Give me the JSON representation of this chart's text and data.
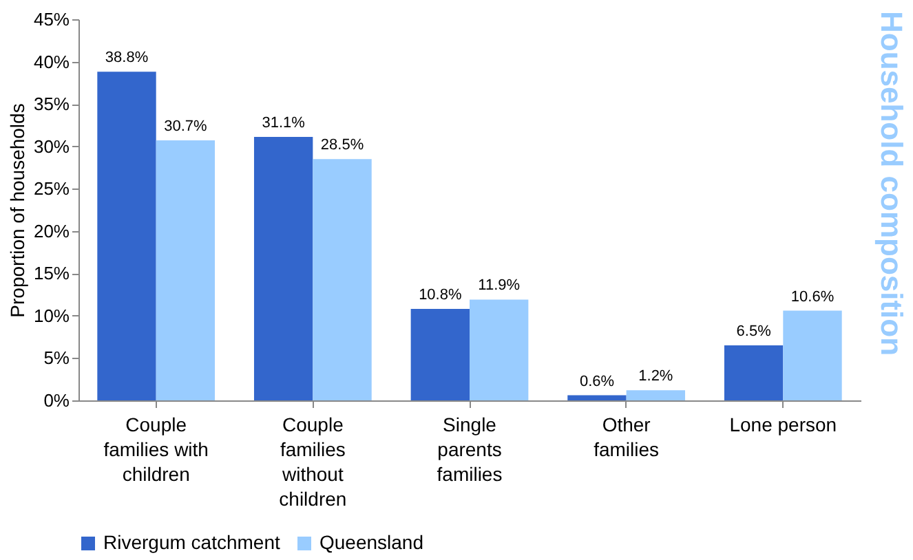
{
  "chart_data": {
    "type": "bar",
    "title": "Household composition",
    "ylabel": "Proportion of households",
    "categories": [
      "Couple families with children",
      "Couple families without children",
      "Single parents families",
      "Other families",
      "Lone person"
    ],
    "series": [
      {
        "name": "Rivergum catchment",
        "color": "#3366cc",
        "values": [
          38.8,
          31.1,
          10.8,
          0.6,
          6.5
        ],
        "value_labels": [
          "38.8%",
          "31.1%",
          "10.8%",
          "0.6%",
          "6.5%"
        ]
      },
      {
        "name": "Queensland",
        "color": "#99ccff",
        "values": [
          30.7,
          28.5,
          11.9,
          1.2,
          10.6
        ],
        "value_labels": [
          "30.7%",
          "28.5%",
          "11.9%",
          "1.2%",
          "10.6%"
        ]
      }
    ],
    "ylim": [
      0,
      45
    ],
    "yticks": [
      {
        "value": 0,
        "label": "0%"
      },
      {
        "value": 5,
        "label": "5%"
      },
      {
        "value": 10,
        "label": "10%"
      },
      {
        "value": 15,
        "label": "15%"
      },
      {
        "value": 20,
        "label": "20%"
      },
      {
        "value": 25,
        "label": "25%"
      },
      {
        "value": 30,
        "label": "30%"
      },
      {
        "value": 35,
        "label": "35%"
      },
      {
        "value": 40,
        "label": "40%"
      },
      {
        "value": 45,
        "label": "45%"
      }
    ],
    "grid": false,
    "legend": "bottom"
  }
}
